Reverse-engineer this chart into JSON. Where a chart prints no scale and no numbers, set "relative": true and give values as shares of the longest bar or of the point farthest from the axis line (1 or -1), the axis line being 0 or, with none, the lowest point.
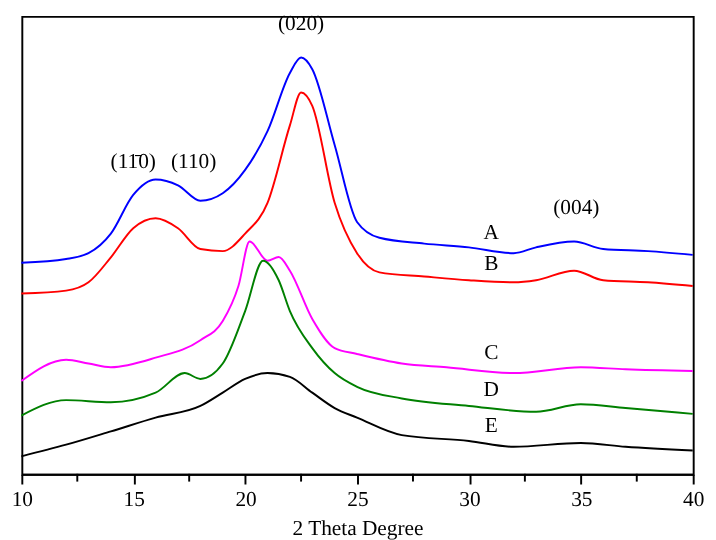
{
  "chart_data": {
    "type": "line",
    "xlabel": "2 Theta Degree",
    "relative": true,
    "xlim": [
      10,
      40
    ],
    "xticks": [
      10,
      {
        "value": 12.5,
        "label": null
      },
      15,
      {
        "value": 17.5,
        "label": null
      },
      20,
      {
        "value": 22.5,
        "label": null
      },
      25,
      {
        "value": 27.5,
        "label": null
      },
      30,
      {
        "value": 32.5,
        "label": null
      },
      35,
      {
        "value": 37.5,
        "label": null
      },
      40
    ],
    "grid": false,
    "marker": "none",
    "line_style": "solid",
    "series": [
      {
        "name": "A",
        "color": "#0000ff",
        "x": [
          10,
          12,
          13,
          14,
          15,
          16,
          17,
          18,
          19,
          20,
          21,
          22,
          22.5,
          23,
          24,
          25,
          26,
          28,
          30,
          32,
          33,
          34.7,
          36,
          38,
          40
        ],
        "values": [
          0.507,
          0.516,
          0.53,
          0.577,
          0.67,
          0.707,
          0.693,
          0.656,
          0.674,
          0.73,
          0.823,
          0.963,
          1.0,
          0.972,
          0.79,
          0.605,
          0.567,
          0.553,
          0.544,
          0.53,
          0.544,
          0.558,
          0.54,
          0.535,
          0.526
        ]
      },
      {
        "name": "B",
        "color": "#ff0000",
        "x": [
          10,
          12,
          13,
          14,
          15,
          16,
          17,
          18,
          19,
          20,
          21,
          22,
          22.5,
          23,
          24,
          25,
          26,
          28,
          30,
          32,
          33,
          34.7,
          36,
          38,
          40
        ],
        "values": [
          0.433,
          0.44,
          0.46,
          0.52,
          0.59,
          0.614,
          0.59,
          0.54,
          0.535,
          0.577,
          0.651,
          0.837,
          0.916,
          0.884,
          0.651,
          0.53,
          0.484,
          0.474,
          0.465,
          0.46,
          0.465,
          0.488,
          0.465,
          0.46,
          0.451
        ]
      },
      {
        "name": "C",
        "color": "#ff00ff",
        "x": [
          10,
          12,
          13,
          14,
          16,
          18,
          19,
          19.7,
          20.2,
          21,
          21.5,
          22,
          23,
          24,
          25,
          27,
          29,
          32,
          35,
          37,
          40
        ],
        "values": [
          0.223,
          0.274,
          0.265,
          0.256,
          0.279,
          0.321,
          0.367,
          0.451,
          0.558,
          0.512,
          0.521,
          0.488,
          0.372,
          0.302,
          0.288,
          0.265,
          0.256,
          0.242,
          0.256,
          0.251,
          0.247
        ]
      },
      {
        "name": "D",
        "color": "#008000",
        "x": [
          10,
          12,
          14,
          16,
          17.3,
          18,
          19,
          20,
          20.8,
          21.5,
          22,
          23,
          24,
          25,
          27,
          30,
          33,
          35,
          37,
          40
        ],
        "values": [
          0.14,
          0.177,
          0.172,
          0.195,
          0.242,
          0.228,
          0.265,
          0.391,
          0.512,
          0.465,
          0.391,
          0.302,
          0.242,
          0.209,
          0.181,
          0.163,
          0.149,
          0.167,
          0.158,
          0.144
        ]
      },
      {
        "name": "E",
        "color": "#000000",
        "x": [
          10,
          12,
          14,
          16,
          18,
          19,
          20,
          21,
          22,
          23,
          24,
          25,
          27,
          30,
          32,
          35,
          37,
          40
        ],
        "values": [
          0.042,
          0.07,
          0.102,
          0.135,
          0.163,
          0.195,
          0.228,
          0.242,
          0.233,
          0.195,
          0.158,
          0.135,
          0.093,
          0.079,
          0.065,
          0.074,
          0.065,
          0.056
        ]
      }
    ],
    "annotations": [
      {
        "text": "(11̄0)",
        "x": 15,
        "y": 0.67
      },
      {
        "text": "(110)",
        "x": 17.7,
        "y": 0.67
      },
      {
        "text": "(020)",
        "x": 22.5,
        "y": 1.0
      },
      {
        "text": "(004)",
        "x": 34.8,
        "y": 0.558
      }
    ]
  }
}
